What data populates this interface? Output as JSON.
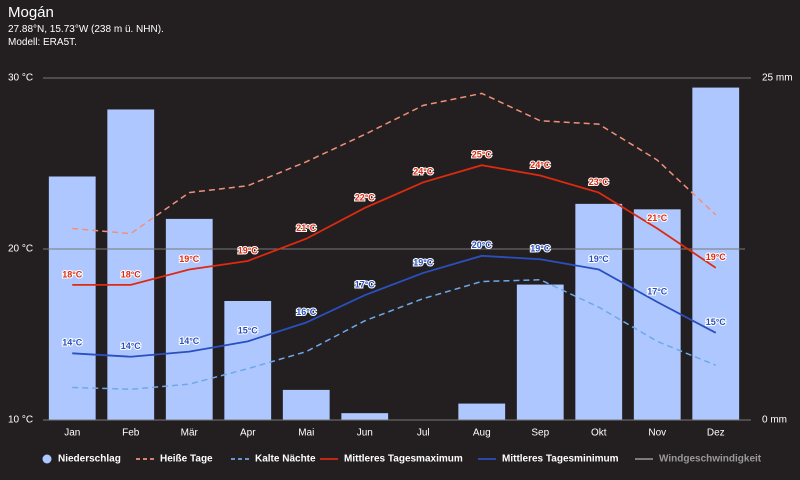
{
  "chart_data": {
    "type": "combo",
    "title": "Mogán",
    "subtitle": "27.88°N, 15.73°W (238 m ü. NHN).",
    "model": "Modell: ERA5T.",
    "categories": [
      "Jan",
      "Feb",
      "Mär",
      "Apr",
      "Mai",
      "Jun",
      "Jul",
      "Aug",
      "Sep",
      "Okt",
      "Nov",
      "Dez"
    ],
    "ylim": [
      10,
      30
    ],
    "yticks": [
      {
        "value": 10,
        "label": "10 °C"
      },
      {
        "value": 20,
        "label": "20 °C"
      },
      {
        "value": 30,
        "label": "30 °C"
      }
    ],
    "y2lim": [
      0,
      25
    ],
    "y2ticks": [
      {
        "value": 0,
        "label": "0 mm"
      },
      {
        "value": 25,
        "label": "25 mm"
      }
    ],
    "grid": true,
    "legend": "bottom",
    "series": [
      {
        "name": "Niederschlag",
        "type": "bar",
        "axis": "y2",
        "color": "#aec8ff",
        "values": [
          17.8,
          22.7,
          14.7,
          8.7,
          2.2,
          0.5,
          0,
          1.2,
          9.9,
          15.8,
          15.4,
          24.3
        ]
      },
      {
        "name": "Heiße Tage",
        "type": "line",
        "dash": true,
        "color": "#f0907a",
        "values": [
          21.2,
          20.9,
          23.3,
          23.7,
          25.1,
          26.7,
          28.4,
          29.1,
          27.5,
          27.3,
          25.2,
          22.0
        ]
      },
      {
        "name": "Kalte Nächte",
        "type": "line",
        "dash": true,
        "color": "#6fa8e8",
        "values": [
          11.9,
          11.8,
          12.1,
          13.0,
          14.0,
          15.8,
          17.1,
          18.1,
          18.2,
          16.6,
          14.6,
          13.2
        ]
      },
      {
        "name": "Mittleres Tagesmaximum",
        "type": "line",
        "dash": false,
        "color": "#dd2a10",
        "values": [
          17.9,
          17.9,
          18.8,
          19.3,
          20.6,
          22.4,
          23.9,
          24.9,
          24.3,
          23.3,
          21.2,
          18.9
        ],
        "value_labels": [
          "18°C",
          "18°C",
          "19°C",
          "19°C",
          "21°C",
          "22°C",
          "24°C",
          "25°C",
          "24°C",
          "23°C",
          "21°C",
          "19°C"
        ]
      },
      {
        "name": "Mittleres Tagesminimum",
        "type": "line",
        "dash": false,
        "color": "#2a4fbf",
        "values": [
          13.9,
          13.7,
          14.0,
          14.6,
          15.7,
          17.3,
          18.6,
          19.6,
          19.4,
          18.8,
          16.9,
          15.1
        ],
        "value_labels": [
          "14°C",
          "14°C",
          "14°C",
          "15°C",
          "16°C",
          "17°C",
          "19°C",
          "20°C",
          "19°C",
          "19°C",
          "17°C",
          "15°C"
        ]
      },
      {
        "name": "Windgeschwindigkeit",
        "type": "line",
        "dash": false,
        "color": "#8a8a8a",
        "values": [
          null,
          null,
          null,
          null,
          null,
          null,
          null,
          null,
          null,
          null,
          null,
          null
        ]
      }
    ]
  }
}
